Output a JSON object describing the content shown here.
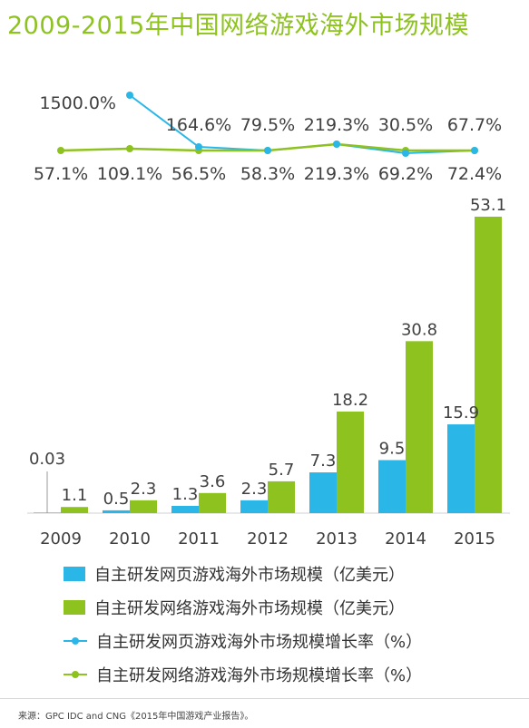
{
  "title": "2009-2015年中国网络游戏海外市场规模",
  "source": "来源：GPC IDC and CNG《2015年中国游戏产业报告》。",
  "colors": {
    "web_game": "#2ab7e8",
    "online_game": "#8dc21f",
    "text": "#404040"
  },
  "chart_data": {
    "type": "bar",
    "categories": [
      "2009",
      "2010",
      "2011",
      "2012",
      "2013",
      "2014",
      "2015"
    ],
    "series": [
      {
        "name": "自主研发网页游戏海外市场规模（亿美元）",
        "kind": "bar",
        "values": [
          0.03,
          0.5,
          1.3,
          2.3,
          7.3,
          9.5,
          15.9
        ],
        "labels": [
          "0.03",
          "0.5",
          "1.3",
          "2.3",
          "7.3",
          "9.5",
          "15.9"
        ]
      },
      {
        "name": "自主研发网络游戏海外市场规模（亿美元）",
        "kind": "bar",
        "values": [
          1.1,
          2.3,
          3.6,
          5.7,
          18.2,
          30.8,
          53.1
        ],
        "labels": [
          "1.1",
          "2.3",
          "3.6",
          "5.7",
          "18.2",
          "30.8",
          "53.1"
        ]
      },
      {
        "name": "自主研发网页游戏海外市场规模增长率（%）",
        "kind": "line",
        "values": [
          null,
          1500.0,
          164.6,
          79.5,
          219.3,
          30.5,
          67.7
        ],
        "labels": [
          null,
          "1500.0%",
          "164.6%",
          "79.5%",
          "219.3%",
          "30.5%",
          "67.7%"
        ]
      },
      {
        "name": "自主研发网络游戏海外市场规模增长率（%）",
        "kind": "line",
        "values": [
          57.1,
          109.1,
          56.5,
          58.3,
          219.3,
          69.2,
          72.4
        ],
        "labels": [
          "57.1%",
          "109.1%",
          "56.5%",
          "58.3%",
          "219.3%",
          "69.2%",
          "72.4%"
        ]
      }
    ]
  }
}
